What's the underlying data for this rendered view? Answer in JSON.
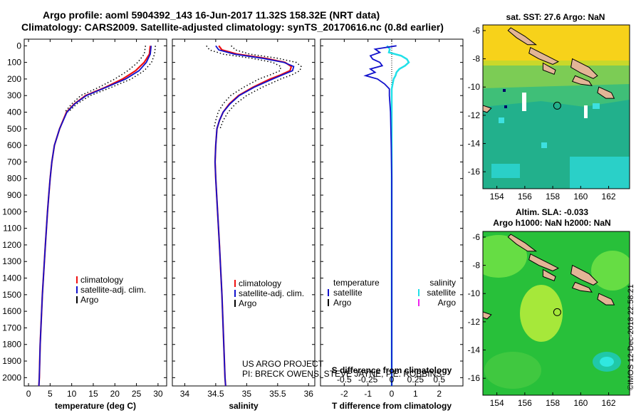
{
  "title_line1": "Argo profile: aoml 5904392_143 16-Jun-2017 11.32S 158.32E (NRT data)",
  "title_line2": "Climatology: CARS2009. Satellite-adjusted climatology: synTS_20170616.nc (0.8d earlier)",
  "colors": {
    "climatology": "#ee1111",
    "satellite": "#1111cc",
    "argo": "#000000",
    "salinity_sat": "#22e0e8",
    "salinity_argo": "#ee22ee"
  },
  "credits": {
    "line1": "US ARGO PROJECT",
    "line2": "PI: BRECK OWENS, STEVE JAYNE, P.E. ROBBINS"
  },
  "stamp": "©IMOS 12-Dec-2018 22:58:21",
  "chart_data": [
    {
      "type": "line",
      "name": "temperature-profile",
      "xlabel": "temperature (deg C)",
      "ylabel": "",
      "xlim": [
        -1,
        32
      ],
      "ylim": [
        2050,
        -40
      ],
      "xticks": [
        "0",
        "5",
        "10",
        "15",
        "20",
        "25",
        "30"
      ],
      "yticks": [
        "0",
        "100",
        "200",
        "300",
        "400",
        "500",
        "600",
        "700",
        "800",
        "900",
        "1000",
        "1100",
        "1200",
        "1300",
        "1400",
        "1500",
        "1600",
        "1700",
        "1800",
        "1900",
        "2000"
      ],
      "legend": [
        "climatology",
        "satellite-adj. clim.",
        "Argo"
      ],
      "series": [
        {
          "name": "climatology",
          "depth": [
            0,
            50,
            100,
            150,
            200,
            250,
            300,
            350,
            400,
            500,
            600,
            700,
            800,
            900,
            1000,
            1200,
            1500,
            1800,
            2000,
            2050
          ],
          "values": [
            28.2,
            28,
            26.8,
            24.8,
            21.8,
            17.8,
            13.2,
            10.6,
            8.8,
            7.2,
            6,
            5.4,
            5,
            4.7,
            4.4,
            3.9,
            3.2,
            2.7,
            2.5,
            2.4
          ]
        },
        {
          "name": "satellite-adj. clim.",
          "depth": [
            0,
            50,
            100,
            150,
            200,
            250,
            300,
            350,
            400,
            500,
            600,
            700,
            800,
            900,
            1000,
            1200,
            1500,
            1800,
            2000,
            2050
          ],
          "values": [
            28.4,
            28.2,
            27.3,
            25.6,
            22.5,
            18,
            13.4,
            10.7,
            8.9,
            7.2,
            6,
            5.4,
            5,
            4.7,
            4.4,
            3.9,
            3.2,
            2.7,
            2.5,
            2.4
          ]
        },
        {
          "name": "climatology range upper",
          "depth": [
            0,
            50,
            100,
            150,
            200,
            250,
            300,
            350,
            400
          ],
          "values": [
            29.4,
            29.2,
            28.5,
            26.8,
            23.8,
            19.2,
            14.3,
            11.2,
            9.2
          ]
        },
        {
          "name": "climatology range lower",
          "depth": [
            0,
            50,
            100,
            150,
            200,
            250,
            300,
            350,
            400
          ],
          "values": [
            27.1,
            26.8,
            25.3,
            23,
            20,
            16.3,
            12.1,
            10,
            8.4
          ]
        }
      ]
    },
    {
      "type": "line",
      "name": "salinity-profile",
      "xlabel": "salinity",
      "xlim": [
        33.8,
        36.1
      ],
      "ylim": [
        2050,
        -40
      ],
      "xticks": [
        "34",
        "34.5",
        "35",
        "35.5",
        "36"
      ],
      "legend": [
        "climatology",
        "satellite-adj. clim.",
        "Argo"
      ],
      "series": [
        {
          "name": "climatology",
          "depth": [
            0,
            25,
            50,
            75,
            100,
            125,
            150,
            175,
            200,
            250,
            300,
            350,
            400,
            450,
            500,
            600,
            700,
            800,
            1000,
            1200,
            1500,
            1800,
            2000,
            2050
          ],
          "values": [
            34.55,
            34.6,
            34.85,
            35.3,
            35.62,
            35.72,
            35.7,
            35.55,
            35.38,
            35.1,
            34.87,
            34.72,
            34.62,
            34.56,
            34.52,
            34.5,
            34.49,
            34.5,
            34.53,
            34.56,
            34.6,
            34.63,
            34.65,
            34.66
          ]
        },
        {
          "name": "satellite-adj. clim.",
          "depth": [
            0,
            25,
            50,
            75,
            100,
            125,
            150,
            175,
            200,
            250,
            300,
            350,
            400,
            450,
            500,
            600,
            700,
            800,
            1000,
            1200,
            1500,
            1800,
            2000,
            2050
          ],
          "values": [
            34.5,
            34.55,
            34.8,
            35.25,
            35.6,
            35.76,
            35.74,
            35.58,
            35.42,
            35.12,
            34.88,
            34.73,
            34.62,
            34.56,
            34.52,
            34.5,
            34.49,
            34.5,
            34.53,
            34.56,
            34.6,
            34.63,
            34.65,
            34.66
          ]
        },
        {
          "name": "climatology range upper",
          "depth": [
            0,
            25,
            50,
            75,
            100,
            125,
            150,
            175,
            200,
            250,
            300,
            350,
            400,
            450,
            500
          ],
          "values": [
            34.75,
            34.82,
            35.05,
            35.5,
            35.8,
            35.88,
            35.86,
            35.73,
            35.55,
            35.25,
            35,
            34.82,
            34.7,
            34.62,
            34.57
          ]
        },
        {
          "name": "climatology range lower",
          "depth": [
            0,
            25,
            50,
            75,
            100,
            125,
            150,
            175,
            200,
            250,
            300,
            350,
            400,
            450,
            500
          ],
          "values": [
            34.35,
            34.4,
            34.62,
            35.08,
            35.42,
            35.55,
            35.54,
            35.38,
            35.2,
            34.95,
            34.74,
            34.62,
            34.54,
            34.5,
            34.47
          ]
        }
      ]
    },
    {
      "type": "line",
      "name": "difference-profile",
      "xlabel": "T difference from climatology",
      "xlabel_top": "S difference from climatology",
      "xlim": [
        -3,
        3
      ],
      "ylim": [
        2050,
        -40
      ],
      "xticks": [
        "-2",
        "-1",
        "0",
        "1",
        "2"
      ],
      "xticks_top": [
        "-0.5",
        "-0.25",
        "0",
        "0.25",
        "0.5"
      ],
      "legend_left_title": "temperature",
      "legend_left": [
        "satellite",
        "Argo"
      ],
      "legend_right_title": "salinity",
      "legend_right": [
        "satellite",
        "Argo"
      ],
      "series": [
        {
          "name": "temperature satellite",
          "depth": [
            0,
            20,
            40,
            60,
            80,
            100,
            120,
            140,
            160,
            180,
            200,
            230,
            260,
            300,
            400,
            600,
            800,
            1000,
            1200,
            1500,
            1800,
            2050
          ],
          "values": [
            0.2,
            -0.7,
            -0.5,
            -0.9,
            -0.8,
            -0.5,
            -0.4,
            -0.9,
            -0.7,
            -1.1,
            -0.6,
            -0.3,
            -0.1,
            -0.1,
            -0.05,
            -0.02,
            0,
            0,
            0,
            0,
            0,
            0
          ]
        },
        {
          "name": "salinity satellite",
          "depth": [
            0,
            20,
            40,
            60,
            80,
            100,
            120,
            140,
            160,
            180,
            200,
            230,
            260,
            300,
            400,
            600,
            800,
            1000,
            1200,
            1500,
            1800,
            2050
          ],
          "values": [
            -0.05,
            -0.02,
            -0.03,
            0.1,
            0.16,
            0.18,
            0.14,
            0.08,
            0.05,
            0.04,
            0.02,
            0.01,
            0,
            0,
            0,
            0,
            0,
            0,
            0,
            0,
            0,
            0
          ]
        }
      ]
    },
    {
      "type": "heatmap",
      "name": "sst-map",
      "title": "sat. SST: 27.6 Argo: NaN",
      "xticks": [
        "154",
        "156",
        "158",
        "160",
        "162"
      ],
      "yticks": [
        "-6",
        "-8",
        "-10",
        "-12",
        "-14",
        "-16"
      ],
      "xlim": [
        153,
        163.5
      ],
      "ylim": [
        -17.2,
        -5.6
      ],
      "argo_position": [
        158.32,
        -11.32
      ]
    },
    {
      "type": "heatmap",
      "name": "sla-map",
      "title_line1": "Altim. SLA: -0.033",
      "title_line2": "Argo h1000: NaN h2000: NaN",
      "xticks": [
        "154",
        "156",
        "158",
        "160",
        "162"
      ],
      "yticks": [
        "-6",
        "-8",
        "-10",
        "-12",
        "-14",
        "-16"
      ],
      "xlim": [
        153,
        163.5
      ],
      "ylim": [
        -17.2,
        -5.6
      ],
      "argo_position": [
        158.32,
        -11.32
      ]
    }
  ]
}
